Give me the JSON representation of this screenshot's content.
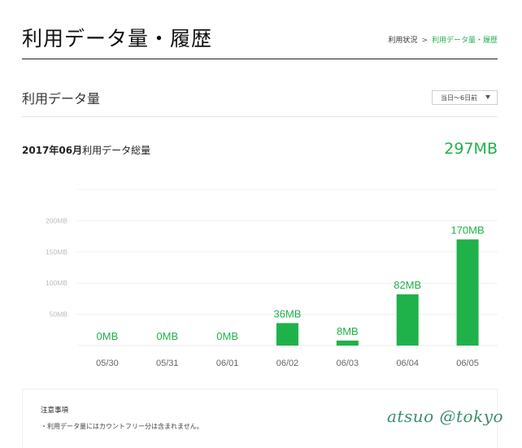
{
  "header": {
    "title": "利用データ量・履歴",
    "breadcrumb": {
      "parent": "利用状況",
      "separator": ">",
      "current": "利用データ量・履歴"
    }
  },
  "section": {
    "title": "利用データ量",
    "period_select": {
      "value": "当日〜6日前"
    }
  },
  "summary": {
    "month_label": "2017年06月",
    "total_label": "利用データ総量",
    "total_value": "297MB"
  },
  "chart_data": {
    "type": "bar",
    "categories": [
      "05/30",
      "05/31",
      "06/01",
      "06/02",
      "06/03",
      "06/04",
      "06/05"
    ],
    "values": [
      0,
      0,
      0,
      36,
      8,
      82,
      170
    ],
    "data_labels": [
      "0MB",
      "0MB",
      "0MB",
      "36MB",
      "8MB",
      "82MB",
      "170MB"
    ],
    "y_ticks": [
      50,
      100,
      150,
      200
    ],
    "y_tick_labels": [
      "50MB",
      "100MB",
      "150MB",
      "200MB"
    ],
    "ylim": [
      0,
      250
    ],
    "unit": "MB",
    "grid": true,
    "bar_color": "#1fb24a",
    "label_color": "#1fb24a"
  },
  "notice": {
    "title": "注意事項",
    "text": "・利用データ量にはカウントフリー分は含まれません。"
  },
  "signature": "atsuo @tokyo",
  "colors": {
    "accent": "#1fb24a",
    "text": "#222222",
    "rule": "#222222"
  }
}
